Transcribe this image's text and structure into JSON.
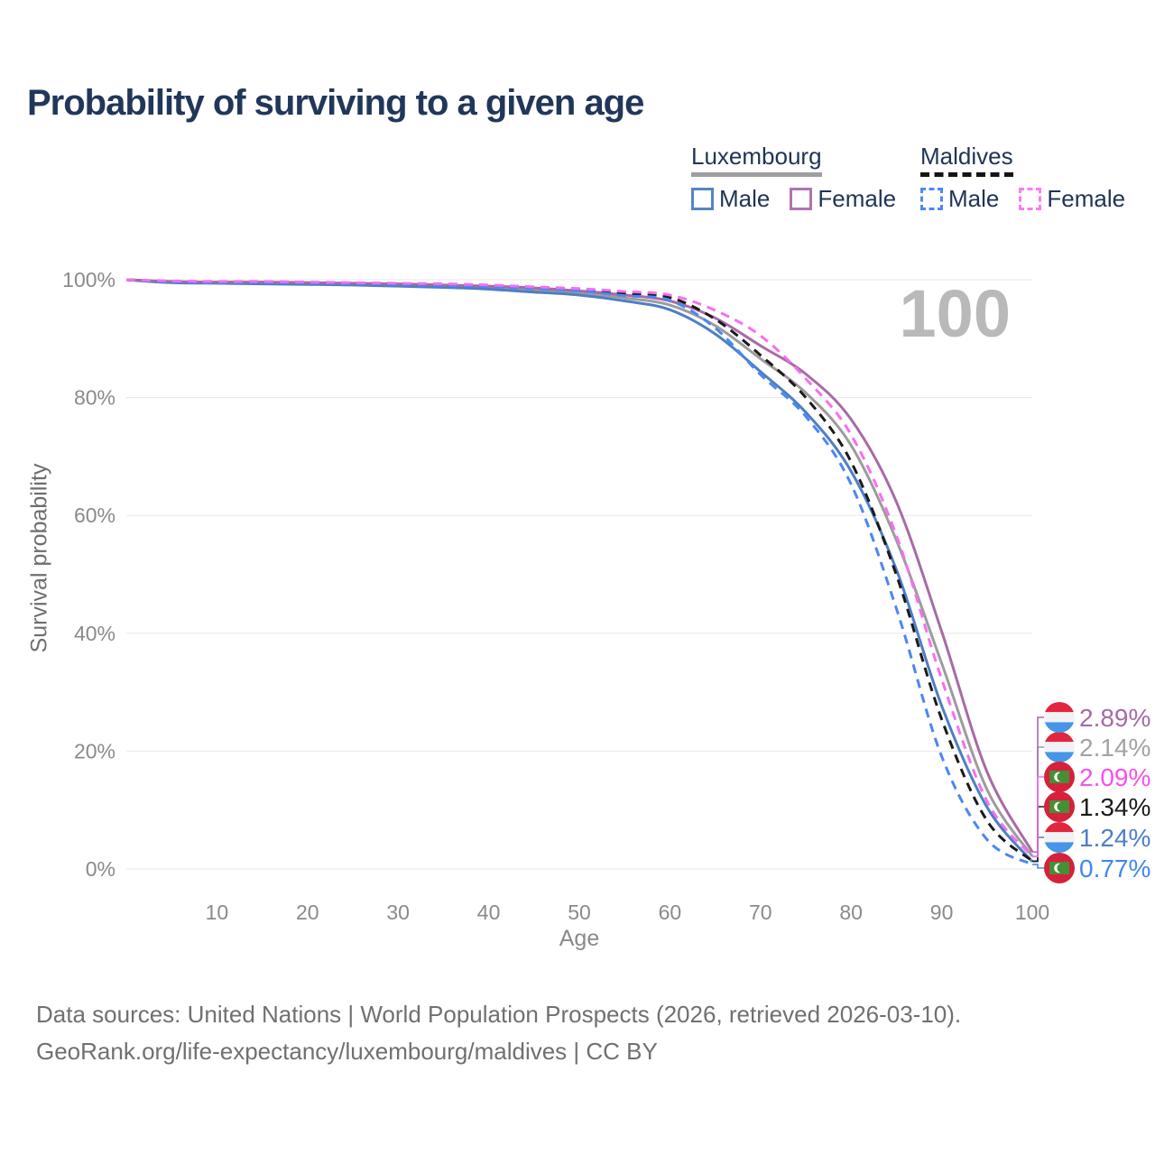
{
  "page": {
    "title": "Probability of surviving to a given age",
    "footer_line1": "Data sources: United Nations | World Population Prospects (2026, retrieved 2026-03-10).",
    "footer_line2": "GeoRank.org/life-expectancy/luxembourg/maldives | CC BY"
  },
  "legend": {
    "groups": [
      {
        "name": "Luxembourg",
        "underline_style": "solid",
        "underline_color": "#9e9e9e",
        "items": [
          {
            "label": "Male",
            "color": "#5585c4",
            "line_style": "solid"
          },
          {
            "label": "Female",
            "color": "#b273af",
            "line_style": "solid"
          }
        ]
      },
      {
        "name": "Maldives",
        "underline_style": "dashed",
        "underline_color": "#141414",
        "items": [
          {
            "label": "Male",
            "color": "#4d88f8",
            "line_style": "dashed"
          },
          {
            "label": "Female",
            "color": "#fc7af2",
            "line_style": "dashed"
          }
        ]
      }
    ]
  },
  "flags": {
    "luxembourg": {
      "stripes": [
        "#e1263d",
        "#f2f2f4",
        "#4596e8"
      ]
    },
    "maldives": {
      "field": "#d6203c",
      "panel": "#458f35",
      "crescent": "#ffffff"
    }
  },
  "chart_data": {
    "type": "line",
    "title": "Probability of surviving to a given age",
    "xlabel": "Age",
    "ylabel": "Survival probability",
    "xlim": [
      0,
      100
    ],
    "ylim": [
      0,
      100
    ],
    "grid": "horizontal",
    "legend_position": "top-right",
    "age_marker_label": "100",
    "xticks": [
      10,
      20,
      30,
      40,
      50,
      60,
      70,
      80,
      90,
      100
    ],
    "yticks": [
      {
        "value": 0,
        "label": "0%"
      },
      {
        "value": 20,
        "label": "20%"
      },
      {
        "value": 40,
        "label": "40%"
      },
      {
        "value": 60,
        "label": "60%"
      },
      {
        "value": 80,
        "label": "80%"
      },
      {
        "value": 100,
        "label": "100%"
      }
    ],
    "x": [
      0,
      5,
      10,
      15,
      20,
      25,
      30,
      35,
      40,
      45,
      50,
      55,
      60,
      65,
      70,
      75,
      80,
      85,
      90,
      95,
      100
    ],
    "series": [
      {
        "name": "Luxembourg Both sexes",
        "slug": "luxembourg-both",
        "country": "Luxembourg",
        "sex": "Both sexes",
        "style": "solid",
        "color": "#9c9c9c",
        "flag": "luxembourg",
        "end_label": "2.14%",
        "end_label_color": "#a3a3a3",
        "label_row": 1,
        "values": [
          100,
          99.6,
          99.5,
          99.4,
          99.4,
          99.2,
          99.1,
          98.9,
          98.7,
          98.3,
          97.8,
          96.9,
          95.7,
          92.2,
          86.6,
          80.8,
          71.9,
          55.8,
          34.9,
          13.5,
          2.14
        ]
      },
      {
        "name": "Luxembourg Male",
        "slug": "luxembourg-male",
        "country": "Luxembourg",
        "sex": "Male",
        "style": "solid",
        "color": "#4d7fc4",
        "flag": "luxembourg",
        "end_label": "1.24%",
        "end_label_color": "#4d7fc4",
        "label_row": 4,
        "values": [
          100,
          99.5,
          99.4,
          99.3,
          99.2,
          99.1,
          98.9,
          98.7,
          98.4,
          97.9,
          97.4,
          96.4,
          94.9,
          90.8,
          84.4,
          77.5,
          67.5,
          50.8,
          27.7,
          10.5,
          1.24
        ]
      },
      {
        "name": "Luxembourg Female",
        "slug": "luxembourg-female",
        "country": "Luxembourg",
        "sex": "Female",
        "style": "solid",
        "color": "#a76ba6",
        "flag": "luxembourg",
        "end_label": "2.89%",
        "end_label_color": "#a56ba5",
        "label_row": 0,
        "values": [
          100,
          99.7,
          99.6,
          99.6,
          99.5,
          99.4,
          99.3,
          99.1,
          98.9,
          98.6,
          98.1,
          97.4,
          96.4,
          93.5,
          88.8,
          84.0,
          76.3,
          62.3,
          40.3,
          16.5,
          2.89
        ]
      },
      {
        "name": "Maldives Both sexes",
        "slug": "maldives-both",
        "country": "Maldives",
        "sex": "Both sexes",
        "style": "dashed",
        "color": "#1a1a1a",
        "flag": "maldives",
        "end_label": "1.34%",
        "end_label_color": "#1a1a1a",
        "label_row": 3,
        "values": [
          100,
          99.7,
          99.6,
          99.6,
          99.5,
          99.4,
          99.3,
          99.1,
          99.0,
          98.7,
          98.3,
          97.7,
          97.0,
          93.3,
          87.2,
          80.0,
          69.1,
          49.9,
          25.4,
          8.2,
          1.34
        ]
      },
      {
        "name": "Maldives Male",
        "slug": "maldives-male",
        "country": "Maldives",
        "sex": "Male",
        "style": "dashed",
        "color": "#4b86f5",
        "flag": "maldives",
        "end_label": "0.77%",
        "end_label_color": "#4285f4",
        "label_row": 5,
        "values": [
          100,
          99.6,
          99.5,
          99.5,
          99.4,
          99.3,
          99.2,
          99.0,
          98.8,
          98.5,
          98.1,
          97.3,
          96.5,
          91.8,
          83.9,
          76.8,
          65.3,
          44.2,
          19.1,
          5.0,
          0.77
        ]
      },
      {
        "name": "Maldives Female",
        "slug": "maldives-female",
        "country": "Maldives",
        "sex": "Female",
        "style": "dashed",
        "color": "#f76ef0",
        "flag": "maldives",
        "end_label": "2.09%",
        "end_label_color": "#f84fec",
        "label_row": 2,
        "values": [
          100,
          99.8,
          99.7,
          99.7,
          99.6,
          99.5,
          99.4,
          99.3,
          99.1,
          98.8,
          98.5,
          98.0,
          97.4,
          94.8,
          90.5,
          83.2,
          73.7,
          56.6,
          32.2,
          11.5,
          2.09
        ]
      }
    ]
  }
}
